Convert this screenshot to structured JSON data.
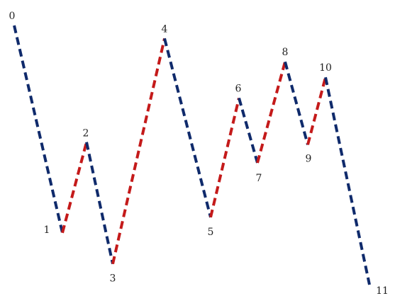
{
  "colors": {
    "down_segment": "#0f2a6b",
    "up_segment": "#c41a1a",
    "label_text": "#222222"
  },
  "chart_data": {
    "type": "line",
    "title": "",
    "xlabel": "",
    "ylabel": "",
    "x": [
      0,
      1,
      2,
      3,
      4,
      5,
      6,
      7,
      8,
      9,
      10,
      11
    ],
    "y": [
      100,
      20,
      55,
      8,
      95,
      26,
      72,
      47,
      86,
      54,
      80,
      0
    ],
    "point_labels": [
      "0",
      "1",
      "2",
      "3",
      "4",
      "5",
      "6",
      "7",
      "8",
      "9",
      "10",
      "11"
    ],
    "series": [
      {
        "style": "dashed",
        "segment_colors": [
          "down",
          "up",
          "down",
          "up",
          "down",
          "up",
          "down",
          "up",
          "down",
          "up",
          "down"
        ]
      }
    ],
    "grid": false,
    "axes_visible": false
  }
}
